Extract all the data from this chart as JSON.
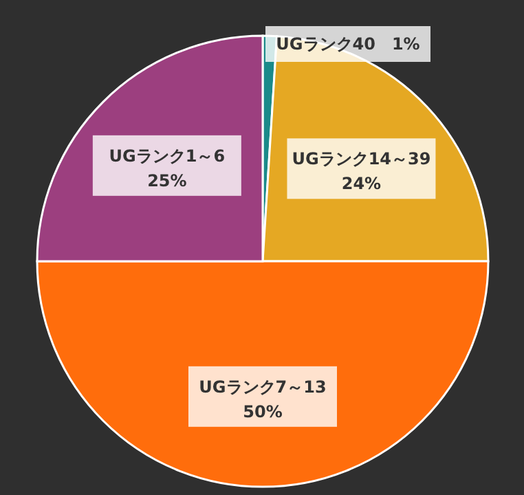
{
  "chart_data": {
    "type": "pie",
    "categories": [
      "UGランク40",
      "UGランク14～39",
      "UGランク7～13",
      "UGランク1～6"
    ],
    "values": [
      1,
      24,
      50,
      25
    ],
    "value_labels": [
      "1%",
      "24%",
      "50%",
      "25%"
    ],
    "colors": [
      "#1b8a8a",
      "#e5a823",
      "#ff6d0c",
      "#9c3f7f"
    ]
  }
}
